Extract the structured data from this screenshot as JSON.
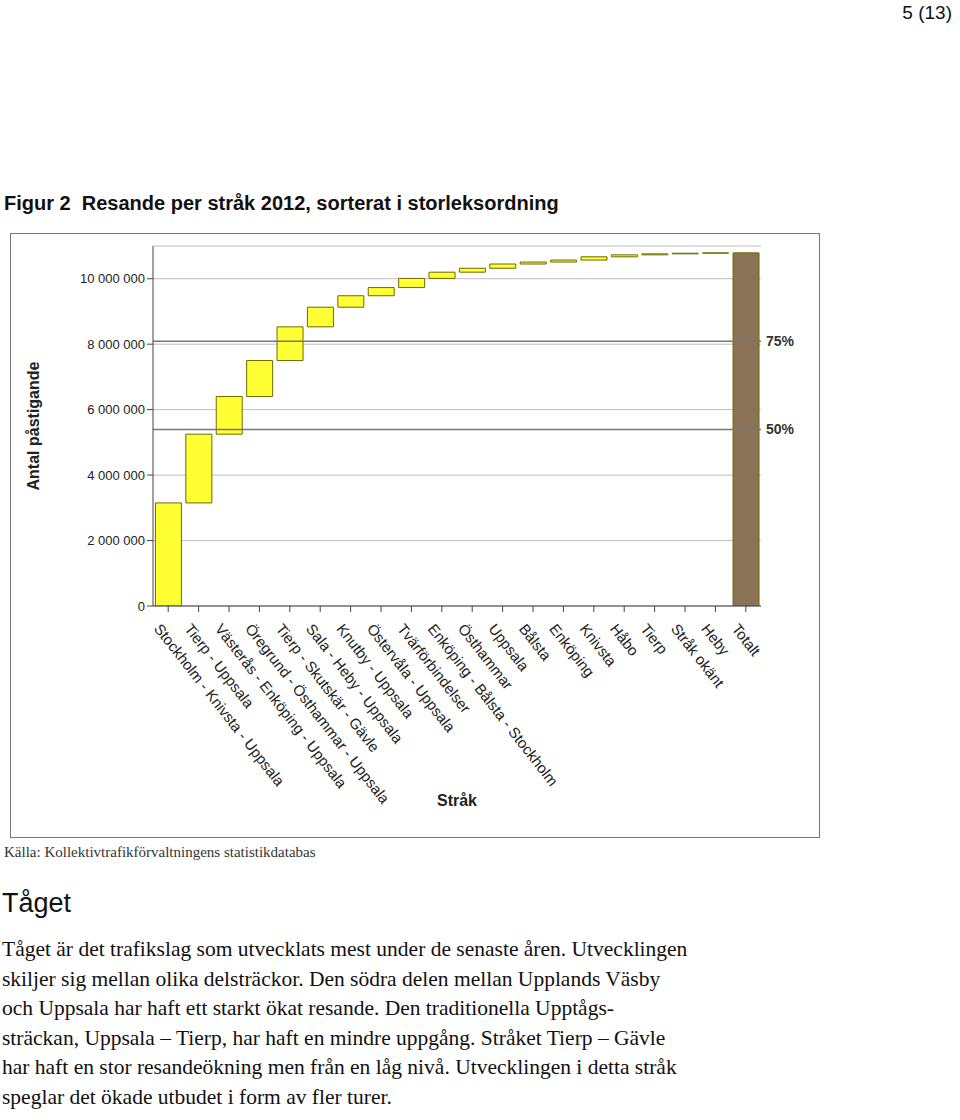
{
  "page_number": "5 (13)",
  "chart_data": {
    "type": "waterfall",
    "title": "Figur 2  Resande per stråk 2012, sorterat i storleksordning",
    "x_label": "Stråk",
    "y_label": "Antal påstigande",
    "categories": [
      "Stockholm - Knivsta - Uppsala",
      "Tierp - Uppsala",
      "Västerås - Enköping - Uppsala",
      "Öregrund - Östhammar - Uppsala",
      "Tierp - Skutskär - Gävle",
      "Sala - Heby - Uppsala",
      "Knutby - Uppsala",
      "Östervåla - Uppsala",
      "Tvärförbindelser",
      "Enköping - Bålsta - Stockholm",
      "Östhammar",
      "Uppsala",
      "Bålsta",
      "Enköping",
      "Knivsta",
      "Håbo",
      "Tierp",
      "Stråk okänt",
      "Heby",
      "Totalt"
    ],
    "values": [
      3150000,
      2100000,
      1150000,
      1100000,
      1030000,
      600000,
      350000,
      250000,
      280000,
      190000,
      120000,
      130000,
      60000,
      60000,
      100000,
      60000,
      30000,
      20000,
      10000,
      10790000
    ],
    "colors": [
      "#ffff33",
      "#ffff33",
      "#ffff33",
      "#ffff33",
      "#ffff33",
      "#ffff33",
      "#ffff33",
      "#ffff33",
      "#ffff33",
      "#ffff33",
      "#ffff33",
      "#ffff33",
      "#ffff33",
      "#ffff33",
      "#ffff33",
      "#ffff33",
      "#ffff33",
      "#ffff33",
      "#ffff33",
      "#8b7358"
    ],
    "ylim": [
      0,
      11000000
    ],
    "yticks": [
      0,
      {
        "value": 2000000,
        "label": "2 000 000"
      },
      {
        "value": 4000000,
        "label": "4 000 000"
      },
      {
        "value": 6000000,
        "label": "6 000 000"
      },
      {
        "value": 8000000,
        "label": "8 000 000"
      },
      {
        "value": 10000000,
        "label": "10 000 000"
      }
    ],
    "reference_lines": [
      {
        "value": 5395000,
        "label": "50%"
      },
      {
        "value": 8092500,
        "label": "75%"
      }
    ],
    "grid": true
  },
  "source": "Källa: Kollektivtrafikförvaltningens statistikdatabas",
  "section": {
    "heading": "Tåget",
    "lines": [
      "Tåget är det trafikslag som utvecklats mest under de senaste åren. Utvecklingen",
      "skiljer sig mellan olika delsträckor. Den södra delen mellan Upplands Väsby",
      "och Uppsala har haft ett starkt ökat resande. Den traditionella Upptågs-",
      "sträckan, Uppsala – Tierp, har haft en mindre uppgång. Stråket Tierp – Gävle",
      "har haft en stor resandeökning men från en låg nivå. Utvecklingen i detta stråk",
      "speglar det ökade utbudet i form av fler turer."
    ]
  }
}
